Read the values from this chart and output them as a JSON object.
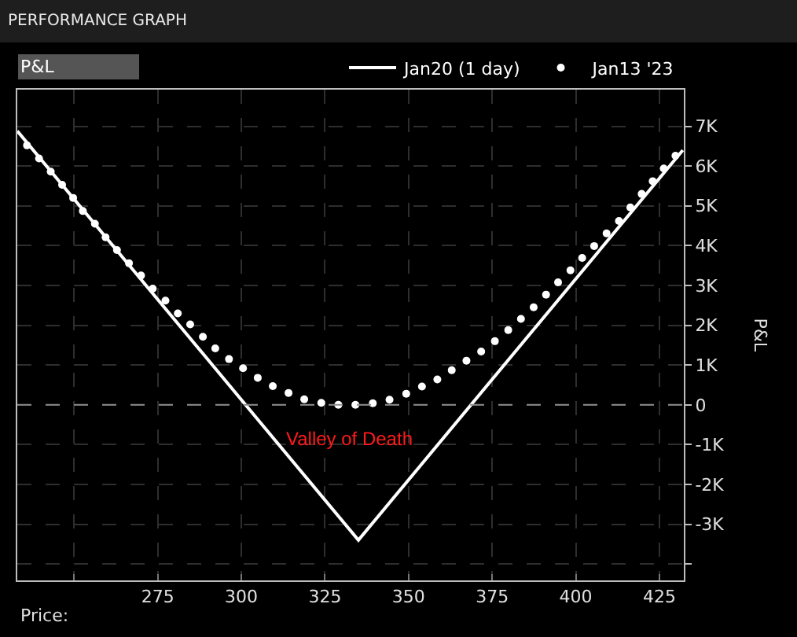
{
  "chart_data": {
    "type": "line",
    "title": "PERFORMANCE GRAPH",
    "xlabel": "Price:",
    "ylabel": "P&L",
    "annotations": [
      "P&L",
      "Valley of Death"
    ],
    "xlim": [
      233,
      432.3
    ],
    "xticks": [
      {
        "value": 250,
        "label": null
      },
      275,
      300,
      325,
      350,
      375,
      400,
      425
    ],
    "ylim": [
      -4410,
      7920
    ],
    "yticks": [
      {
        "value": -4000,
        "label": null
      },
      {
        "value": -3000,
        "label": "-3K"
      },
      {
        "value": -2000,
        "label": "-2K"
      },
      {
        "value": -1000,
        "label": "-1K"
      },
      0,
      {
        "value": 1000,
        "label": "1K"
      },
      {
        "value": 2000,
        "label": "2K"
      },
      {
        "value": 3000,
        "label": "3K"
      },
      {
        "value": 4000,
        "label": "4K"
      },
      {
        "value": 5000,
        "label": "5K"
      },
      {
        "value": 6000,
        "label": "6K"
      },
      {
        "value": 7000,
        "label": "7K"
      }
    ],
    "grid": true,
    "legend": "top right",
    "ref_lines": [
      {
        "axis": "y",
        "value": 0,
        "label": null,
        "color": "#8c8c8c",
        "line_style": "dashed"
      }
    ],
    "series": [
      {
        "name": "Jan20 (1 day)",
        "color": "#ffffff",
        "line_style": "solid",
        "marker": "none",
        "x": [
          233,
          335,
          432
        ],
        "values": [
          6880,
          -3400,
          6400
        ]
      },
      {
        "name": "Jan13 '23",
        "type": "scatter",
        "color": "#ffffff",
        "marker": "circle",
        "x": [
          235.9,
          239.5,
          243.0,
          246.4,
          249.7,
          252.6,
          256.2,
          259.4,
          262.8,
          266.4,
          270.0,
          273.5,
          277.3,
          281.0,
          284.7,
          288.5,
          292.2,
          296.3,
          300.5,
          304.9,
          309.4,
          314.1,
          318.8,
          323.9,
          329.0,
          334.1,
          339.3,
          344.3,
          349.3,
          354.0,
          358.6,
          362.9,
          367.3,
          371.7,
          375.8,
          379.8,
          383.6,
          387.4,
          391.1,
          394.7,
          398.4,
          401.9,
          405.5,
          409.2,
          412.9,
          416.3,
          419.7,
          423.0,
          426.3,
          429.8
        ],
        "values": [
          6520,
          6190,
          5860,
          5530,
          5200,
          4870,
          4550,
          4210,
          3890,
          3560,
          3250,
          2920,
          2620,
          2300,
          2020,
          1710,
          1420,
          1150,
          920,
          680,
          470,
          300,
          140,
          50,
          0,
          0,
          40,
          130,
          280,
          460,
          640,
          870,
          1110,
          1340,
          1600,
          1880,
          2160,
          2450,
          2770,
          3080,
          3380,
          3690,
          3990,
          4310,
          4620,
          4960,
          5300,
          5620,
          5940,
          6260
        ]
      }
    ]
  }
}
